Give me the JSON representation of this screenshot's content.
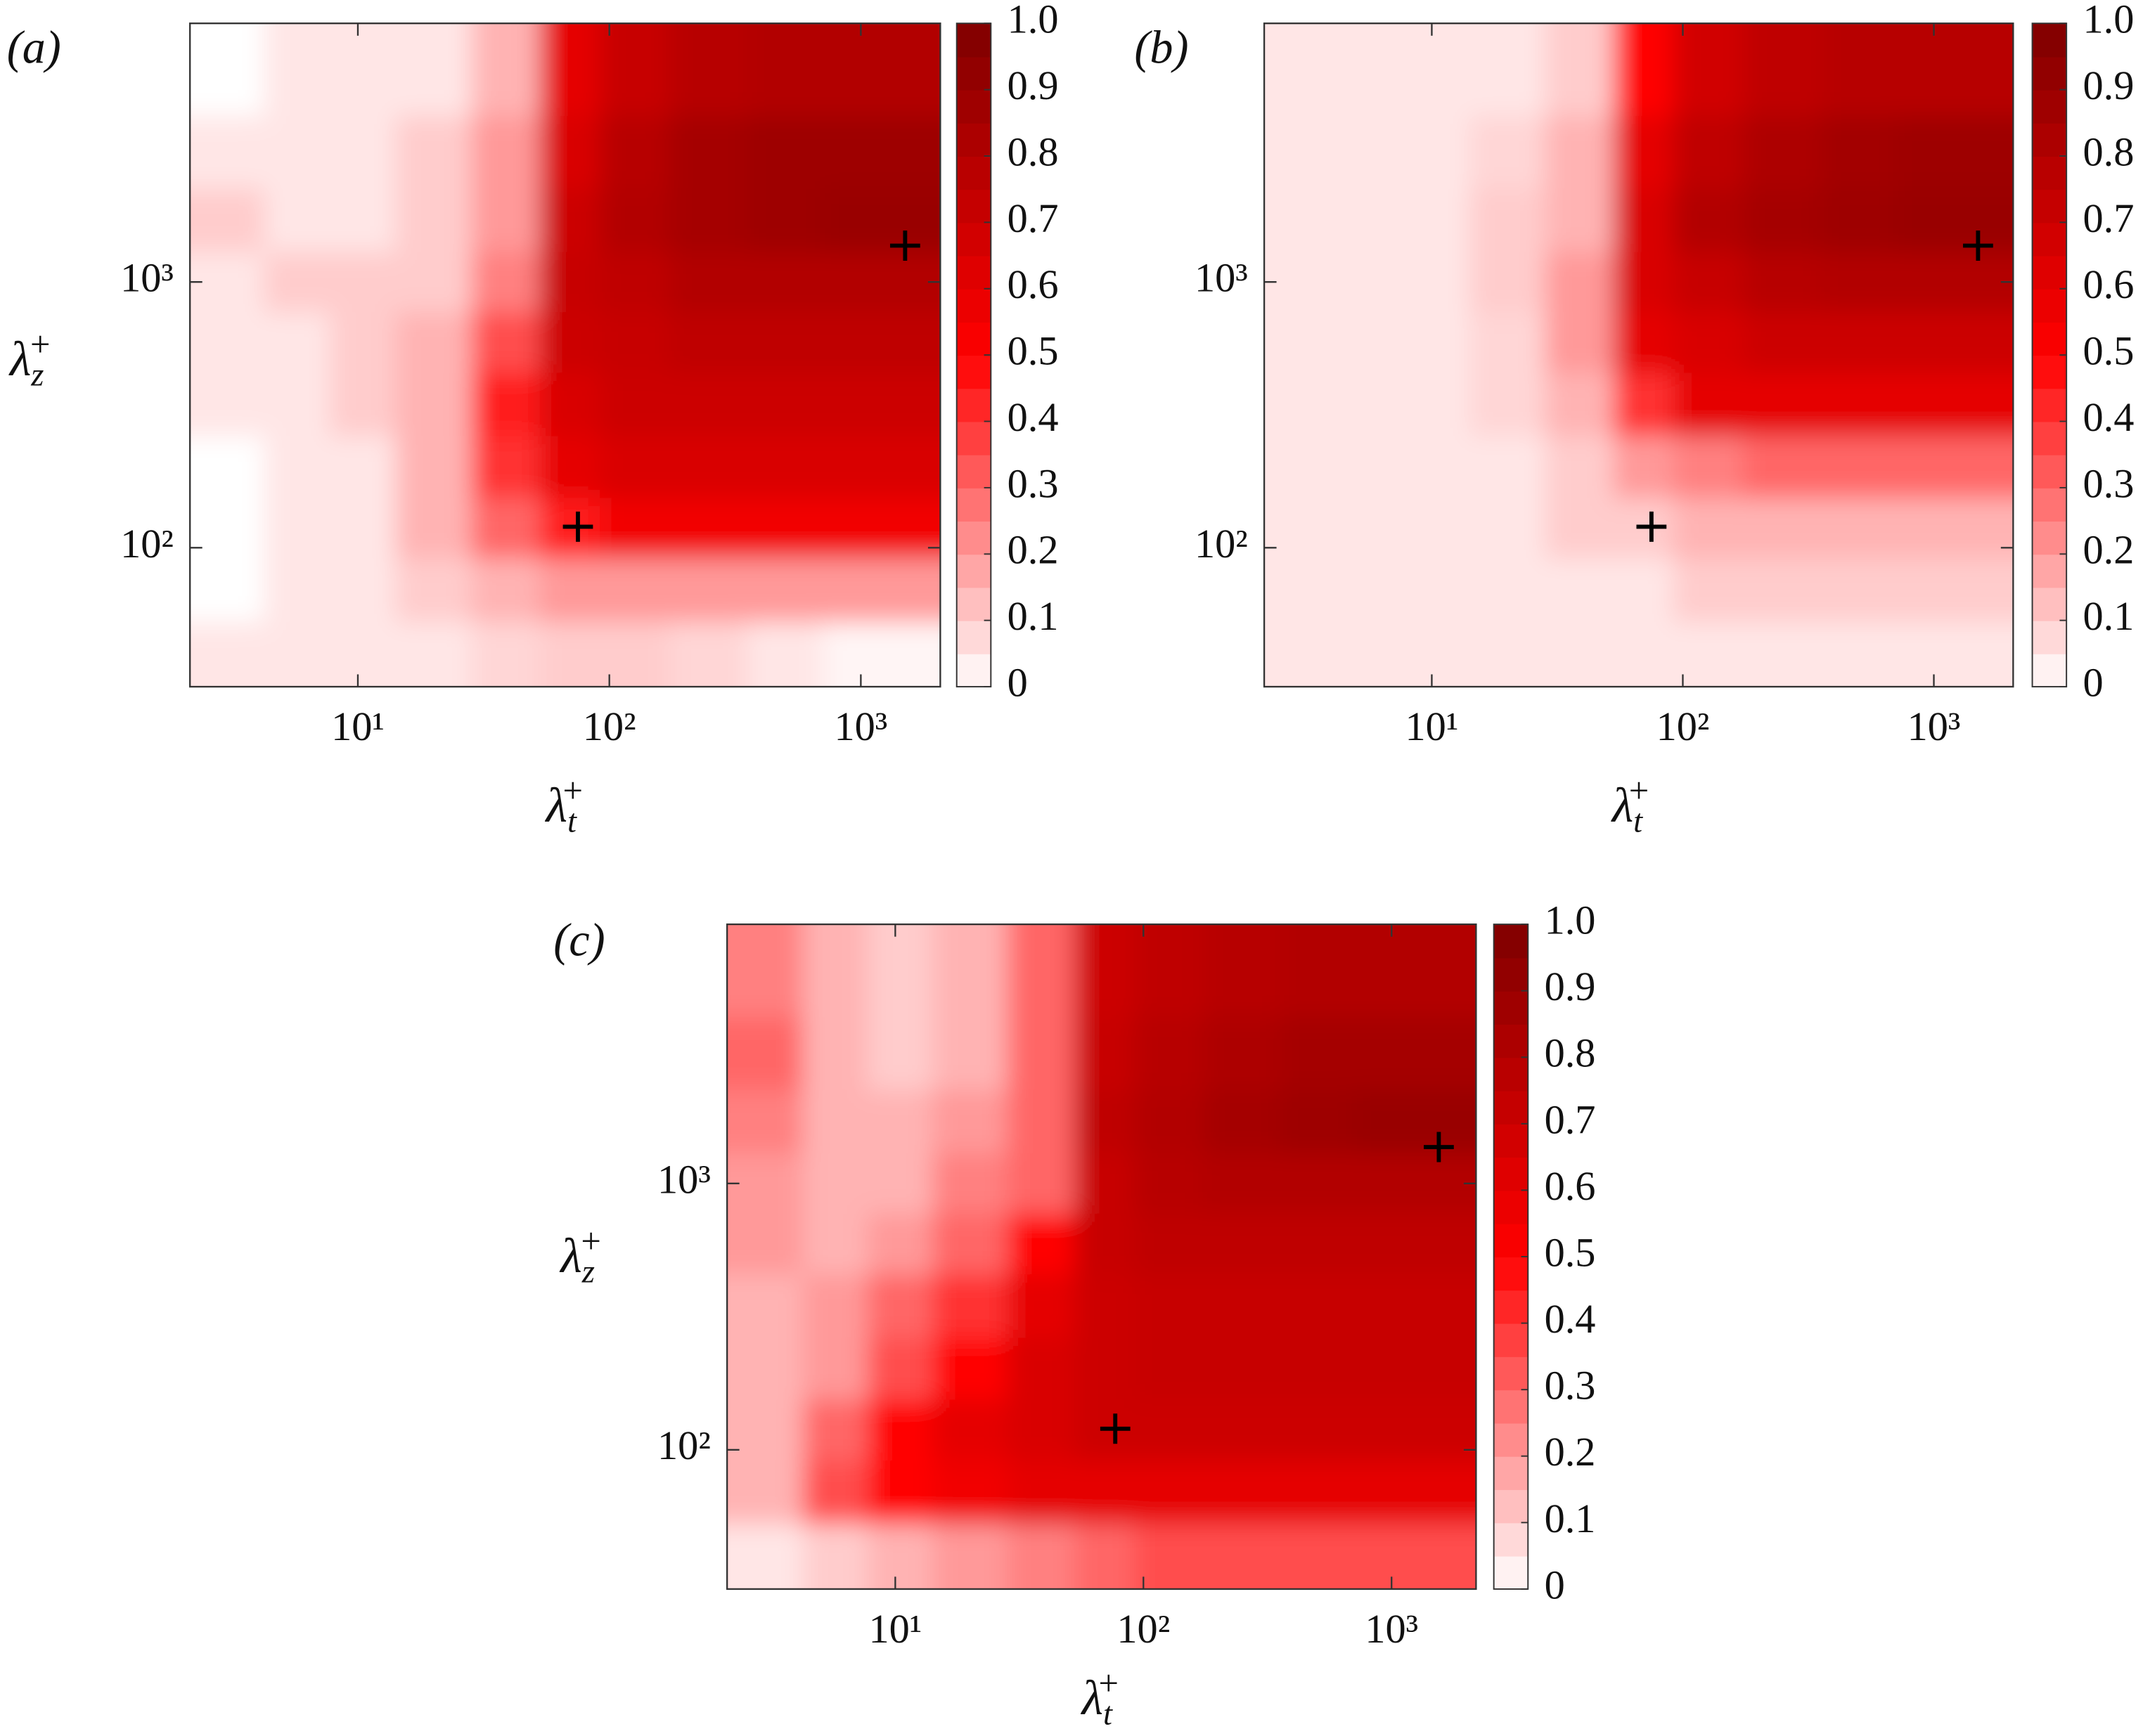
{
  "chart_data": [
    {
      "type": "contour",
      "panel_label": "(a)",
      "xlabel": {
        "symbol": "λ",
        "sub": "t",
        "sup": "+"
      },
      "ylabel": {
        "symbol": "λ",
        "sub": "z",
        "sup": "+"
      },
      "xscale": "log",
      "yscale": "log",
      "xlim": [
        2.15,
        2070
      ],
      "ylim": [
        30,
        9400
      ],
      "xticks": [
        {
          "value": 10,
          "label": "10¹"
        },
        {
          "value": 100,
          "label": "10²"
        },
        {
          "value": 1000,
          "label": "10³"
        }
      ],
      "yticks": [
        {
          "value": 100,
          "label": "10²"
        },
        {
          "value": 1000,
          "label": "10³"
        }
      ],
      "x": [
        3,
        6,
        10,
        20,
        40,
        70,
        120,
        250,
        500,
        1000,
        1800
      ],
      "y": [
        40,
        70,
        120,
        200,
        350,
        600,
        1000,
        1700,
        3000,
        6000
      ],
      "z": [
        [
          0.05,
          0.05,
          0.05,
          0.05,
          0.08,
          0.1,
          0.1,
          0.08,
          0.05,
          0.02,
          0.02
        ],
        [
          0,
          0.05,
          0.05,
          0.1,
          0.15,
          0.2,
          0.2,
          0.2,
          0.2,
          0.2,
          0.2
        ],
        [
          0,
          0.05,
          0.05,
          0.15,
          0.3,
          0.45,
          0.55,
          0.55,
          0.55,
          0.55,
          0.55
        ],
        [
          0,
          0.05,
          0.05,
          0.15,
          0.4,
          0.6,
          0.65,
          0.65,
          0.65,
          0.65,
          0.65
        ],
        [
          0.05,
          0.05,
          0.1,
          0.15,
          0.45,
          0.65,
          0.7,
          0.7,
          0.7,
          0.7,
          0.7
        ],
        [
          0.05,
          0.05,
          0.1,
          0.15,
          0.35,
          0.7,
          0.72,
          0.75,
          0.75,
          0.75,
          0.75
        ],
        [
          0.05,
          0.1,
          0.1,
          0.1,
          0.25,
          0.72,
          0.75,
          0.8,
          0.8,
          0.8,
          0.8
        ],
        [
          0.1,
          0.05,
          0.05,
          0.1,
          0.2,
          0.7,
          0.8,
          0.85,
          0.88,
          0.9,
          0.9
        ],
        [
          0.05,
          0.05,
          0.05,
          0.1,
          0.2,
          0.65,
          0.78,
          0.85,
          0.88,
          0.88,
          0.88
        ],
        [
          0,
          0.05,
          0.05,
          0.05,
          0.15,
          0.6,
          0.72,
          0.78,
          0.8,
          0.8,
          0.8
        ]
      ],
      "colormap": [
        "#ffffff",
        "#ff0000",
        "#7f0000"
      ],
      "clim": [
        0,
        1
      ],
      "cticks": [
        0,
        0.1,
        0.2,
        0.3,
        0.4,
        0.5,
        0.6,
        0.7,
        0.8,
        0.9,
        {
          "value": 1,
          "label": "1.0"
        }
      ],
      "markers": {
        "x": [
          75,
          1500
        ],
        "y": [
          120,
          1370
        ]
      }
    },
    {
      "type": "contour",
      "panel_label": "(b)",
      "xlabel": {
        "symbol": "λ",
        "sub": "t",
        "sup": "+"
      },
      "xscale": "log",
      "yscale": "log",
      "xlim": [
        2.15,
        2070
      ],
      "ylim": [
        30,
        9400
      ],
      "xticks": [
        {
          "value": 10,
          "label": "10¹"
        },
        {
          "value": 100,
          "label": "10²"
        },
        {
          "value": 1000,
          "label": "10³"
        }
      ],
      "yticks": [
        {
          "value": 100,
          "label": "10²"
        },
        {
          "value": 1000,
          "label": "10³"
        }
      ],
      "x": [
        3,
        6,
        10,
        20,
        40,
        70,
        120,
        250,
        500,
        1000,
        1800
      ],
      "y": [
        40,
        70,
        120,
        200,
        350,
        600,
        1000,
        1700,
        3000,
        6000
      ],
      "z": [
        [
          0.05,
          0.05,
          0.05,
          0.05,
          0.05,
          0.05,
          0.05,
          0.05,
          0.05,
          0.05,
          0.05
        ],
        [
          0.05,
          0.05,
          0.05,
          0.05,
          0.05,
          0.05,
          0.1,
          0.1,
          0.1,
          0.1,
          0.1
        ],
        [
          0.05,
          0.05,
          0.05,
          0.05,
          0.1,
          0.1,
          0.15,
          0.15,
          0.15,
          0.15,
          0.15
        ],
        [
          0.05,
          0.05,
          0.05,
          0.05,
          0.1,
          0.2,
          0.25,
          0.3,
          0.3,
          0.3,
          0.3
        ],
        [
          0.05,
          0.05,
          0.05,
          0.08,
          0.15,
          0.4,
          0.6,
          0.6,
          0.6,
          0.6,
          0.6
        ],
        [
          0.05,
          0.05,
          0.05,
          0.08,
          0.2,
          0.6,
          0.65,
          0.7,
          0.7,
          0.7,
          0.7
        ],
        [
          0.05,
          0.05,
          0.05,
          0.1,
          0.2,
          0.65,
          0.72,
          0.78,
          0.8,
          0.8,
          0.8
        ],
        [
          0.05,
          0.05,
          0.05,
          0.1,
          0.15,
          0.65,
          0.8,
          0.85,
          0.88,
          0.9,
          0.9
        ],
        [
          0.05,
          0.05,
          0.05,
          0.08,
          0.15,
          0.6,
          0.75,
          0.82,
          0.86,
          0.88,
          0.88
        ],
        [
          0.05,
          0.05,
          0.05,
          0.05,
          0.1,
          0.5,
          0.68,
          0.75,
          0.78,
          0.78,
          0.78
        ]
      ],
      "colormap": [
        "#ffffff",
        "#ff0000",
        "#7f0000"
      ],
      "clim": [
        0,
        1
      ],
      "cticks": [
        0,
        0.1,
        0.2,
        0.3,
        0.4,
        0.5,
        0.6,
        0.7,
        0.8,
        0.9,
        {
          "value": 1,
          "label": "1.0"
        }
      ],
      "markers": {
        "x": [
          75,
          1500
        ],
        "y": [
          120,
          1370
        ]
      }
    },
    {
      "type": "contour",
      "panel_label": "(c)",
      "xlabel": {
        "symbol": "λ",
        "sub": "t",
        "sup": "+"
      },
      "ylabel": {
        "symbol": "λ",
        "sub": "z",
        "sup": "+"
      },
      "xscale": "log",
      "yscale": "log",
      "xlim": [
        2.1,
        2190
      ],
      "ylim": [
        30,
        9400
      ],
      "xticks": [
        {
          "value": 10,
          "label": "10¹"
        },
        {
          "value": 100,
          "label": "10²"
        },
        {
          "value": 1000,
          "label": "10³"
        }
      ],
      "yticks": [
        {
          "value": 100,
          "label": "10²"
        },
        {
          "value": 1000,
          "label": "10³"
        }
      ],
      "x": [
        3,
        6,
        10,
        20,
        40,
        70,
        120,
        250,
        500,
        1000,
        1800
      ],
      "y": [
        40,
        70,
        120,
        200,
        350,
        600,
        1000,
        1700,
        3000,
        6000
      ],
      "z": [
        [
          0.05,
          0.1,
          0.15,
          0.2,
          0.25,
          0.3,
          0.35,
          0.35,
          0.35,
          0.35,
          0.35
        ],
        [
          0.15,
          0.35,
          0.5,
          0.55,
          0.6,
          0.6,
          0.6,
          0.6,
          0.6,
          0.6,
          0.6
        ],
        [
          0.15,
          0.3,
          0.5,
          0.6,
          0.65,
          0.7,
          0.7,
          0.7,
          0.7,
          0.7,
          0.7
        ],
        [
          0.15,
          0.2,
          0.35,
          0.5,
          0.65,
          0.7,
          0.72,
          0.72,
          0.72,
          0.72,
          0.72
        ],
        [
          0.15,
          0.2,
          0.3,
          0.4,
          0.6,
          0.7,
          0.72,
          0.72,
          0.72,
          0.72,
          0.72
        ],
        [
          0.2,
          0.15,
          0.2,
          0.3,
          0.5,
          0.72,
          0.75,
          0.75,
          0.75,
          0.75,
          0.75
        ],
        [
          0.2,
          0.15,
          0.15,
          0.25,
          0.3,
          0.72,
          0.78,
          0.8,
          0.8,
          0.8,
          0.8
        ],
        [
          0.25,
          0.15,
          0.15,
          0.2,
          0.3,
          0.75,
          0.8,
          0.85,
          0.88,
          0.9,
          0.9
        ],
        [
          0.3,
          0.15,
          0.1,
          0.15,
          0.3,
          0.72,
          0.78,
          0.82,
          0.85,
          0.85,
          0.85
        ],
        [
          0.25,
          0.15,
          0.1,
          0.15,
          0.3,
          0.7,
          0.75,
          0.78,
          0.8,
          0.8,
          0.8
        ]
      ],
      "colormap": [
        "#ffffff",
        "#ff0000",
        "#7f0000"
      ],
      "clim": [
        0,
        1
      ],
      "cticks": [
        0,
        0.1,
        0.2,
        0.3,
        0.4,
        0.5,
        0.6,
        0.7,
        0.8,
        0.9,
        {
          "value": 1,
          "label": "1.0"
        }
      ],
      "markers": {
        "x": [
          77,
          1550
        ],
        "y": [
          120,
          1370
        ]
      }
    }
  ]
}
